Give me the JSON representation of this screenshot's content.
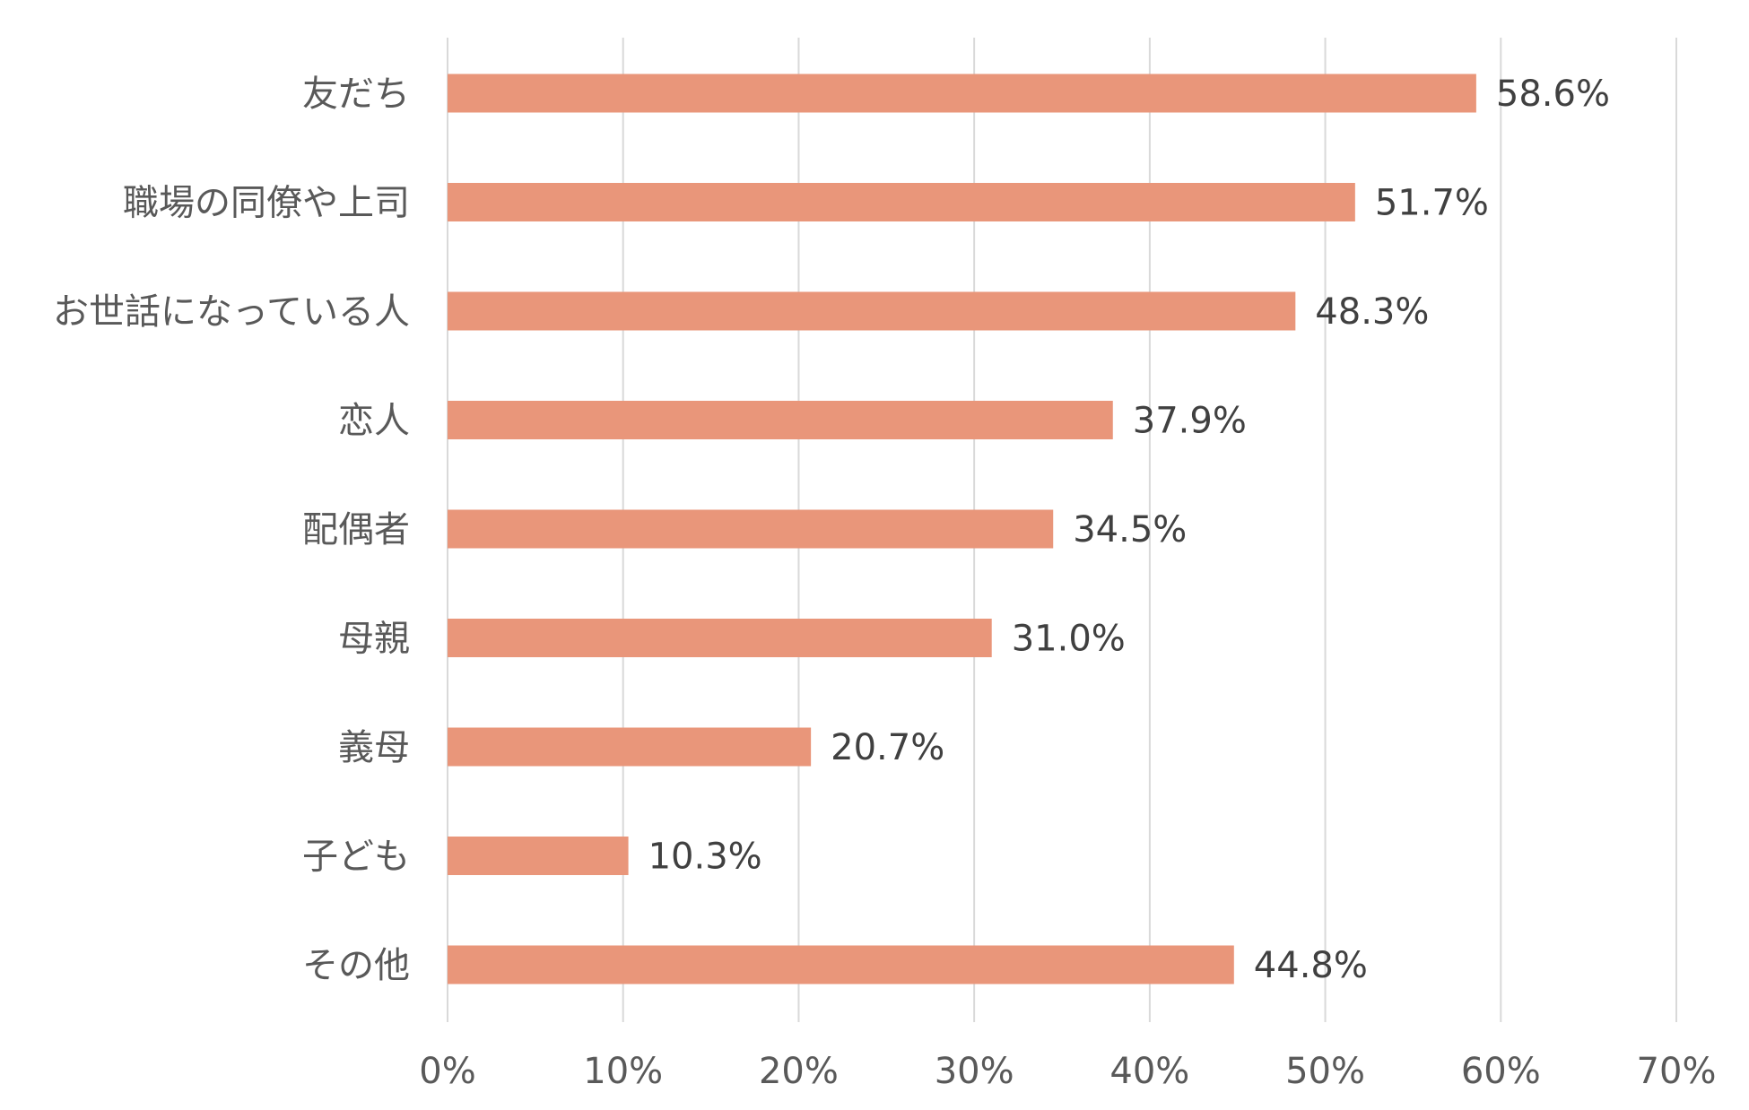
{
  "chart_data": {
    "type": "bar",
    "orientation": "horizontal",
    "categories": [
      "友だち",
      "職場の同僚や上司",
      "お世話になっている人",
      "恋人",
      "配偶者",
      "母親",
      "義母",
      "子ども",
      "その他"
    ],
    "values": [
      58.6,
      51.7,
      48.3,
      37.9,
      34.5,
      31.0,
      20.7,
      10.3,
      44.8
    ],
    "data_labels": [
      "58.6%",
      "51.7%",
      "48.3%",
      "37.9%",
      "34.5%",
      "31.0%",
      "20.7%",
      "10.3%",
      "44.8%"
    ],
    "xlim": [
      0,
      70
    ],
    "x_ticks": [
      "0%",
      "10%",
      "20%",
      "30%",
      "40%",
      "50%",
      "60%",
      "70%"
    ],
    "grid": "vertical",
    "title": "",
    "xlabel": "",
    "ylabel": "",
    "bar_color": "#E9967A",
    "grid_color": "#D9D9D9"
  }
}
